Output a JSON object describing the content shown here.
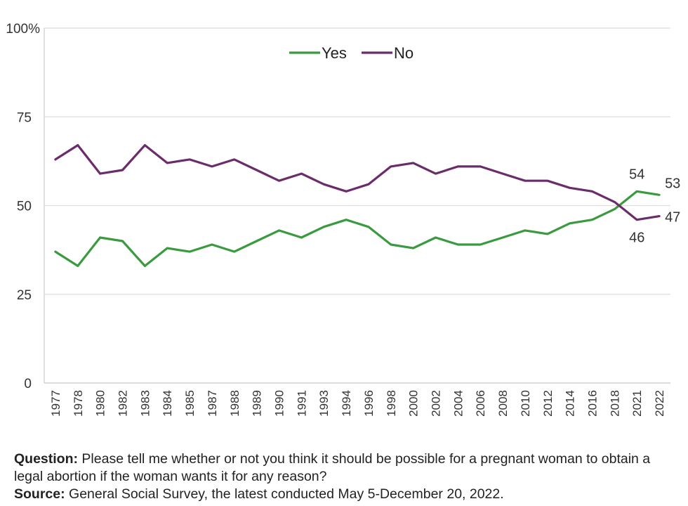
{
  "chart_data": {
    "type": "line",
    "categories": [
      "1977",
      "1978",
      "1980",
      "1982",
      "1983",
      "1984",
      "1985",
      "1987",
      "1988",
      "1989",
      "1990",
      "1991",
      "1993",
      "1994",
      "1996",
      "1998",
      "2000",
      "2002",
      "2004",
      "2006",
      "2008",
      "2010",
      "2012",
      "2014",
      "2016",
      "2018",
      "2021",
      "2022"
    ],
    "series": [
      {
        "name": "Yes",
        "color": "#3a9a3f",
        "values": [
          37,
          33,
          41,
          40,
          33,
          38,
          37,
          39,
          37,
          40,
          43,
          41,
          44,
          46,
          44,
          39,
          38,
          41,
          39,
          39,
          41,
          43,
          42,
          45,
          46,
          49,
          54,
          53
        ]
      },
      {
        "name": "No",
        "color": "#6b2c6b",
        "values": [
          63,
          67,
          59,
          60,
          67,
          62,
          63,
          61,
          63,
          60,
          57,
          59,
          56,
          54,
          56,
          61,
          62,
          59,
          61,
          61,
          59,
          57,
          57,
          55,
          54,
          51,
          46,
          47
        ]
      }
    ],
    "ylim": [
      0,
      100
    ],
    "yticks": [
      "0",
      "25",
      "50",
      "75",
      "100%"
    ],
    "ytick_values": [
      0,
      25,
      50,
      75,
      100
    ],
    "data_labels": [
      {
        "series": "Yes",
        "index": 26,
        "text": "54"
      },
      {
        "series": "Yes",
        "index": 27,
        "text": "53"
      },
      {
        "series": "No",
        "index": 26,
        "text": "46"
      },
      {
        "series": "No",
        "index": 27,
        "text": "47"
      }
    ],
    "legend_position": "top-center",
    "grid": true
  },
  "notes": {
    "question_label": "Question:",
    "question_text": " Please tell me whether or not you think it should be possible for a pregnant woman to obtain a legal abortion if the woman wants it for any reason?",
    "source_label": "Source:",
    "source_text": " General Social Survey, the latest conducted May 5-December 20, 2022."
  }
}
